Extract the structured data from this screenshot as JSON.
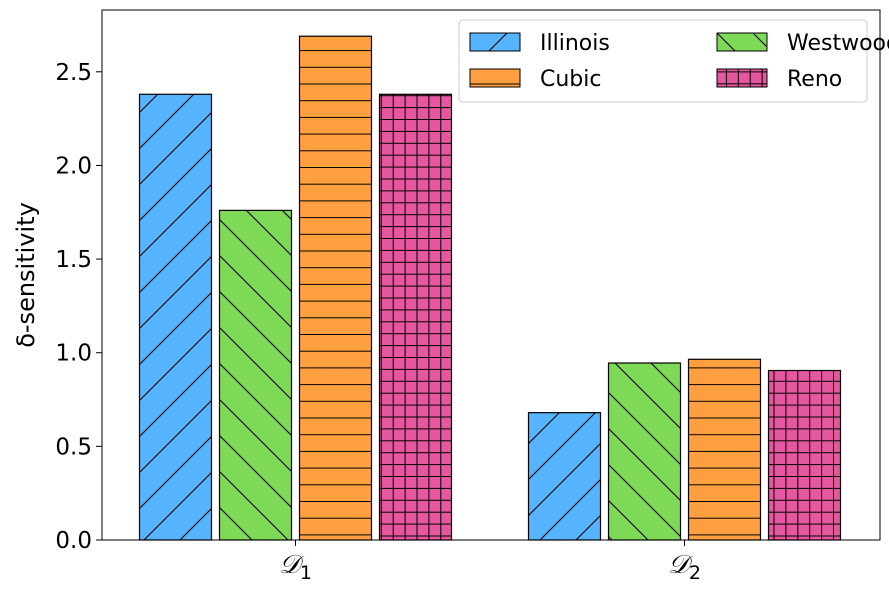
{
  "chart_data": {
    "type": "bar",
    "categories": [
      "D1",
      "D2"
    ],
    "category_labels": [
      {
        "main": "𝒟",
        "sub": "1"
      },
      {
        "main": "𝒟",
        "sub": "2"
      }
    ],
    "series": [
      {
        "name": "Illinois",
        "values": [
          2.38,
          0.68
        ],
        "color": "#56b4ff",
        "hatch": "forward-diagonal"
      },
      {
        "name": "Westwood",
        "values": [
          1.76,
          0.945
        ],
        "color": "#7ed957",
        "hatch": "back-diagonal"
      },
      {
        "name": "Cubic",
        "values": [
          2.69,
          0.965
        ],
        "color": "#ff9f40",
        "hatch": "horizontal"
      },
      {
        "name": "Reno",
        "values": [
          2.38,
          0.905
        ],
        "color": "#e5579f",
        "hatch": "grid"
      }
    ],
    "ylabel": "δ-sensitivity",
    "xlabel": "",
    "ylim": [
      0,
      2.83
    ],
    "yticks": [
      0.0,
      0.5,
      1.0,
      1.5,
      2.0,
      2.5
    ],
    "ytick_labels": [
      "0.0",
      "0.5",
      "1.0",
      "1.5",
      "2.0",
      "2.5"
    ],
    "grid": false,
    "legend_position": "top-right",
    "legend_columns": 2
  }
}
